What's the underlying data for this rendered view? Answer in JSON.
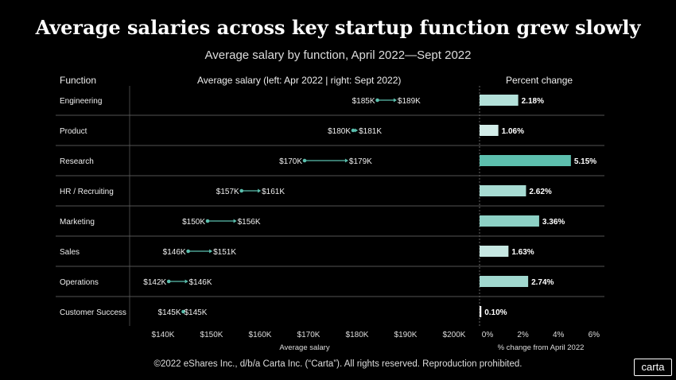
{
  "title": "Average salaries across key startup function grew slowly",
  "subtitle": "Average salary by function, April 2022—Sept 2022",
  "headers": {
    "function": "Function",
    "salary": "Average salary (left: Apr 2022 | right: Sept 2022)",
    "pct": "Percent change"
  },
  "footer": "©2022 eShares Inc., d/b/a Carta Inc. (“Carta”). All rights reserved. Reproduction prohibited.",
  "logo": "carta",
  "colors": {
    "accent": "#5bbfae",
    "line": "#555555"
  },
  "chart_data": [
    {
      "type": "dumbbell",
      "xlabel": "Average salary",
      "xlim": [
        140,
        200
      ],
      "unit": "$K",
      "ticks": [
        "$140K",
        "$150K",
        "$160K",
        "$170K",
        "$180K",
        "$190K",
        "$200K"
      ],
      "categories": [
        "Engineering",
        "Product",
        "Research",
        "HR / Recruiting",
        "Marketing",
        "Sales",
        "Operations",
        "Customer Success"
      ],
      "apr_2022": [
        185,
        180,
        170,
        157,
        150,
        146,
        142,
        145
      ],
      "sept_2022": [
        189,
        181,
        179,
        161,
        156,
        151,
        146,
        145
      ],
      "apr_labels": [
        "$185K",
        "$180K",
        "$170K",
        "$157K",
        "$150K",
        "$146K",
        "$142K",
        "$145K"
      ],
      "sept_labels": [
        "$189K",
        "$181K",
        "$179K",
        "$161K",
        "$156K",
        "$151K",
        "$146K",
        "$145K"
      ]
    },
    {
      "type": "bar",
      "orientation": "horizontal",
      "xlabel": "% change from April 2022",
      "xlim": [
        0,
        6
      ],
      "ticks": [
        "0%",
        "2%",
        "4%",
        "6%"
      ],
      "categories": [
        "Engineering",
        "Product",
        "Research",
        "HR / Recruiting",
        "Marketing",
        "Sales",
        "Operations",
        "Customer Success"
      ],
      "values": [
        2.18,
        1.06,
        5.15,
        2.62,
        3.36,
        1.63,
        2.74,
        0.1
      ],
      "labels": [
        "2.18%",
        "1.06%",
        "5.15%",
        "2.62%",
        "3.36%",
        "1.63%",
        "2.74%",
        "0.10%"
      ],
      "bar_colors": [
        "#b3e0d9",
        "#d2ece8",
        "#5dbfae",
        "#a7dbd2",
        "#8dd1c5",
        "#c6e7e2",
        "#a1d8cf",
        "#ffffff"
      ]
    }
  ]
}
